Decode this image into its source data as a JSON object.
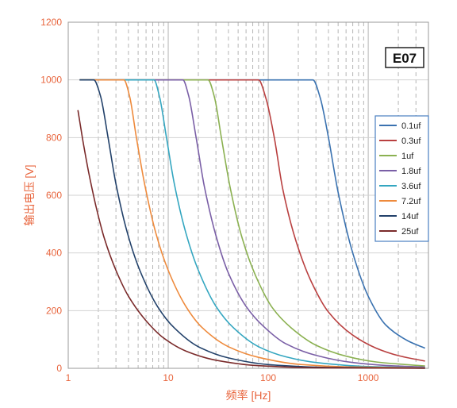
{
  "chart_data": {
    "type": "line",
    "title": "",
    "badge": "E07",
    "xlabel": "频率 [Hz]",
    "ylabel": "输出电压 [V]",
    "x_scale": "log",
    "xlim": [
      1,
      4000
    ],
    "ylim": [
      0,
      1200
    ],
    "x_ticks": [
      {
        "value": 1,
        "label": "1"
      },
      {
        "value": 10,
        "label": "10"
      },
      {
        "value": 100,
        "label": "100"
      },
      {
        "value": 1000,
        "label": "1000"
      }
    ],
    "y_ticks": [
      {
        "value": 0,
        "label": "0"
      },
      {
        "value": 200,
        "label": "200"
      },
      {
        "value": 400,
        "label": "400"
      },
      {
        "value": 600,
        "label": "600"
      },
      {
        "value": 800,
        "label": "800"
      },
      {
        "value": 1000,
        "label": "1000"
      },
      {
        "value": 1200,
        "label": "1200"
      }
    ],
    "grid": {
      "horizontal": "solid",
      "vertical_minor": "dashed"
    },
    "legend_position": "right",
    "series": [
      {
        "name": "0.1uf",
        "color": "#3a72b0",
        "points": [
          [
            1.3,
            1000
          ],
          [
            10,
            1000
          ],
          [
            100,
            1000
          ],
          [
            280,
            1000
          ],
          [
            330,
            940
          ],
          [
            400,
            800
          ],
          [
            500,
            610
          ],
          [
            700,
            400
          ],
          [
            1000,
            250
          ],
          [
            1500,
            150
          ],
          [
            2500,
            95
          ],
          [
            3700,
            70
          ]
        ]
      },
      {
        "name": "0.3uf",
        "color": "#b94040",
        "points": [
          [
            1.3,
            1000
          ],
          [
            10,
            1000
          ],
          [
            80,
            1000
          ],
          [
            95,
            935
          ],
          [
            115,
            800
          ],
          [
            140,
            620
          ],
          [
            190,
            440
          ],
          [
            270,
            300
          ],
          [
            400,
            195
          ],
          [
            700,
            115
          ],
          [
            1200,
            70
          ],
          [
            2000,
            44
          ],
          [
            3700,
            25
          ]
        ]
      },
      {
        "name": "1uf",
        "color": "#8bb151",
        "points": [
          [
            1.3,
            1000
          ],
          [
            10,
            1000
          ],
          [
            25,
            1000
          ],
          [
            29,
            940
          ],
          [
            34,
            800
          ],
          [
            42,
            620
          ],
          [
            55,
            450
          ],
          [
            75,
            320
          ],
          [
            110,
            210
          ],
          [
            170,
            140
          ],
          [
            300,
            80
          ],
          [
            600,
            42
          ],
          [
            1200,
            22
          ],
          [
            3700,
            8
          ]
        ]
      },
      {
        "name": "1.8uf",
        "color": "#7a5fa6",
        "points": [
          [
            1.3,
            1000
          ],
          [
            8,
            1000
          ],
          [
            14,
            1000
          ],
          [
            16,
            945
          ],
          [
            19,
            800
          ],
          [
            23,
            630
          ],
          [
            30,
            460
          ],
          [
            40,
            330
          ],
          [
            60,
            215
          ],
          [
            90,
            145
          ],
          [
            150,
            85
          ],
          [
            300,
            45
          ],
          [
            700,
            20
          ],
          [
            1500,
            10
          ],
          [
            3700,
            4
          ]
        ]
      },
      {
        "name": "3.6uf",
        "color": "#33a6c0",
        "points": [
          [
            1.3,
            1000
          ],
          [
            5,
            1000
          ],
          [
            7.2,
            1000
          ],
          [
            8.2,
            940
          ],
          [
            9.6,
            800
          ],
          [
            11.5,
            640
          ],
          [
            15,
            470
          ],
          [
            20,
            340
          ],
          [
            30,
            215
          ],
          [
            45,
            140
          ],
          [
            80,
            75
          ],
          [
            150,
            40
          ],
          [
            300,
            20
          ],
          [
            1000,
            6
          ],
          [
            3700,
            2
          ]
        ]
      },
      {
        "name": "7.2uf",
        "color": "#ee8a3c",
        "points": [
          [
            1.3,
            1000
          ],
          [
            3,
            1000
          ],
          [
            3.6,
            1000
          ],
          [
            4.1,
            945
          ],
          [
            4.8,
            800
          ],
          [
            5.8,
            640
          ],
          [
            7.5,
            470
          ],
          [
            10,
            340
          ],
          [
            15,
            215
          ],
          [
            22,
            140
          ],
          [
            40,
            75
          ],
          [
            80,
            38
          ],
          [
            200,
            14
          ],
          [
            600,
            5
          ],
          [
            3700,
            1
          ]
        ]
      },
      {
        "name": "14uf",
        "color": "#22416a",
        "points": [
          [
            1.3,
            1000
          ],
          [
            1.8,
            1000
          ],
          [
            2.1,
            945
          ],
          [
            2.5,
            800
          ],
          [
            3,
            640
          ],
          [
            3.9,
            470
          ],
          [
            5.2,
            340
          ],
          [
            7.8,
            215
          ],
          [
            11.5,
            140
          ],
          [
            20,
            75
          ],
          [
            40,
            36
          ],
          [
            100,
            13
          ],
          [
            400,
            3
          ],
          [
            3700,
            0.5
          ]
        ]
      },
      {
        "name": "25uf",
        "color": "#7a2a2a",
        "points": [
          [
            1.25,
            895
          ],
          [
            1.4,
            790
          ],
          [
            1.6,
            680
          ],
          [
            1.9,
            560
          ],
          [
            2.3,
            450
          ],
          [
            3,
            340
          ],
          [
            4,
            250
          ],
          [
            6,
            165
          ],
          [
            9,
            105
          ],
          [
            15,
            60
          ],
          [
            30,
            28
          ],
          [
            80,
            9
          ],
          [
            300,
            2
          ],
          [
            3700,
            0.3
          ]
        ]
      }
    ]
  }
}
